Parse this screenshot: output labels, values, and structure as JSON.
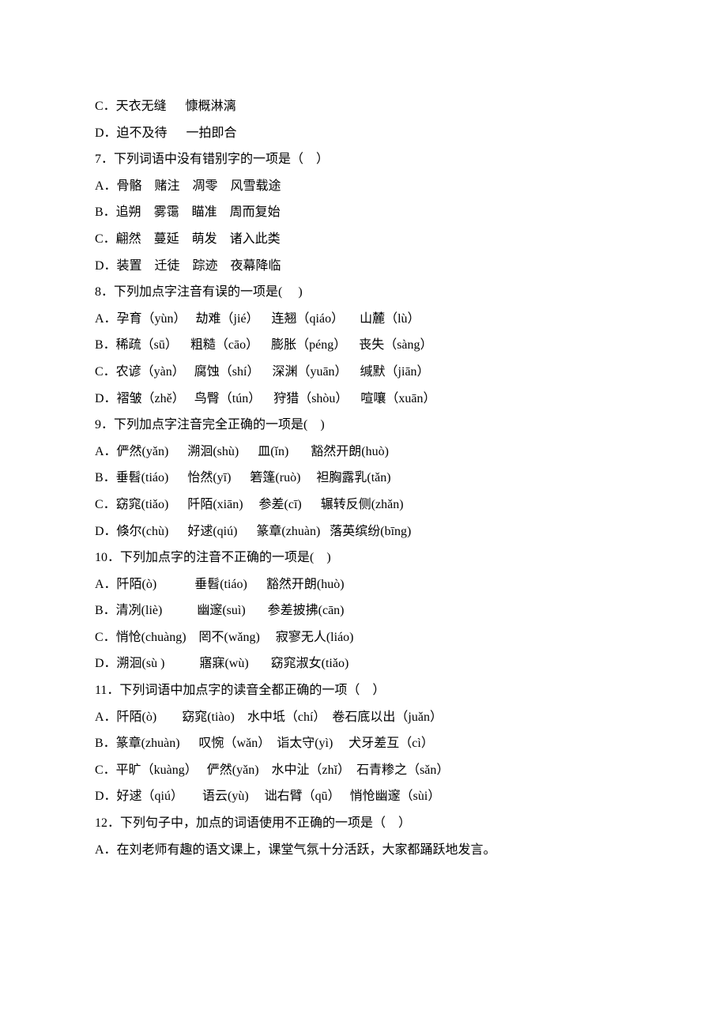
{
  "lines": [
    "C．天衣无缝      慷概淋漓",
    "D．迫不及待      一拍即合",
    "7．下列词语中没有错别字的一项是（    ）",
    "A．骨骼    赌注    凋零    风雪载途",
    "B．追朔    雾霭    瞄准    周而复始",
    "C．翩然    蔓延    萌发    诸入此类",
    "D．装置    迁徒    踪迹    夜幕降临",
    "8．下列加点字注音有误的一项是(     )",
    "A．孕育（yùn）   劫难（jié）    连翘（qiáo）     山麓（lù）",
    "B．稀疏（sū）    粗糙（cāo）    膨胀（péng）    丧失（sàng）",
    "C．农谚（yàn）   腐蚀（shí）    深渊（yuān）    缄默（jiān）",
    "D．褶皱（zhě）   鸟臀（tún）    狩猎（shòu）    喧嚷（xuān）",
    "9．下列加点字注音完全正确的一项是(    )",
    "A．俨然(yǎn)      溯洄(shù)      皿(ǐn)       豁然开朗(huò)",
    "B．垂髫(tiáo)      怡然(yī)      箬篷(ruò)     袒胸露乳(tǎn)",
    "C．窈窕(tiǎo)      阡陌(xiān)     参差(cī)      辗转反侧(zhǎn)",
    "D．倏尔(chù)      好逑(qiú)      篆章(zhuàn)   落英缤纷(bīng)",
    "10．下列加点字的注音不正确的一项是(    )",
    "A．阡陌(ò)            垂髫(tiáo)      豁然开朗(huò)",
    "B．清冽(liè)           幽邃(suì)       参差披拂(cān)",
    "C．悄怆(chuàng)    罔不(wǎng)     寂寥无人(liáo)",
    "D．溯洄(sù )           寤寐(wù)       窈窕淑女(tiǎo)",
    "11．下列词语中加点字的读音全都正确的一项（    ）",
    "A．阡陌(ò)        窈窕(tiào)    水中坻（chí）  卷石底以出（juǎn）",
    "B．篆章(zhuàn)      叹惋（wǎn）  诣太守(yì)     犬牙差互（cì）",
    "C．平旷（kuàng）   俨然(yǎn)    水中沚（zhǐ）  石青糁之（sǎn）",
    "D．好逑（qiú）      语云(yù)     诎右臂（qū）   悄怆幽邃（sùi）",
    "12．下列句子中，加点的词语使用不正确的一项是（    ）",
    "A．在刘老师有趣的语文课上，课堂气氛十分活跃，大家都踊跃地发言。"
  ]
}
